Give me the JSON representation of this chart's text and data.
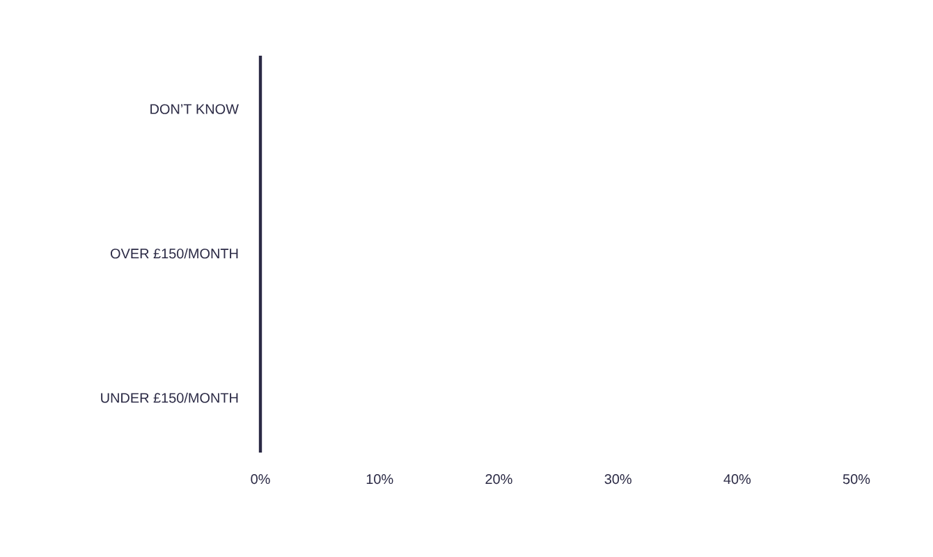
{
  "chart_data": {
    "type": "bar",
    "orientation": "horizontal",
    "categories": [
      "DON’T KNOW",
      "OVER £150/MONTH",
      "UNDER £150/MONTH"
    ],
    "values": [
      null,
      null,
      null
    ],
    "xlim": [
      0,
      50
    ],
    "xticks": [
      {
        "value": 0,
        "label": "0%"
      },
      {
        "value": 10,
        "label": "10%"
      },
      {
        "value": 20,
        "label": "20%"
      },
      {
        "value": 30,
        "label": "30%"
      },
      {
        "value": 40,
        "label": "40%"
      },
      {
        "value": 50,
        "label": "50%"
      }
    ],
    "grid": false
  }
}
